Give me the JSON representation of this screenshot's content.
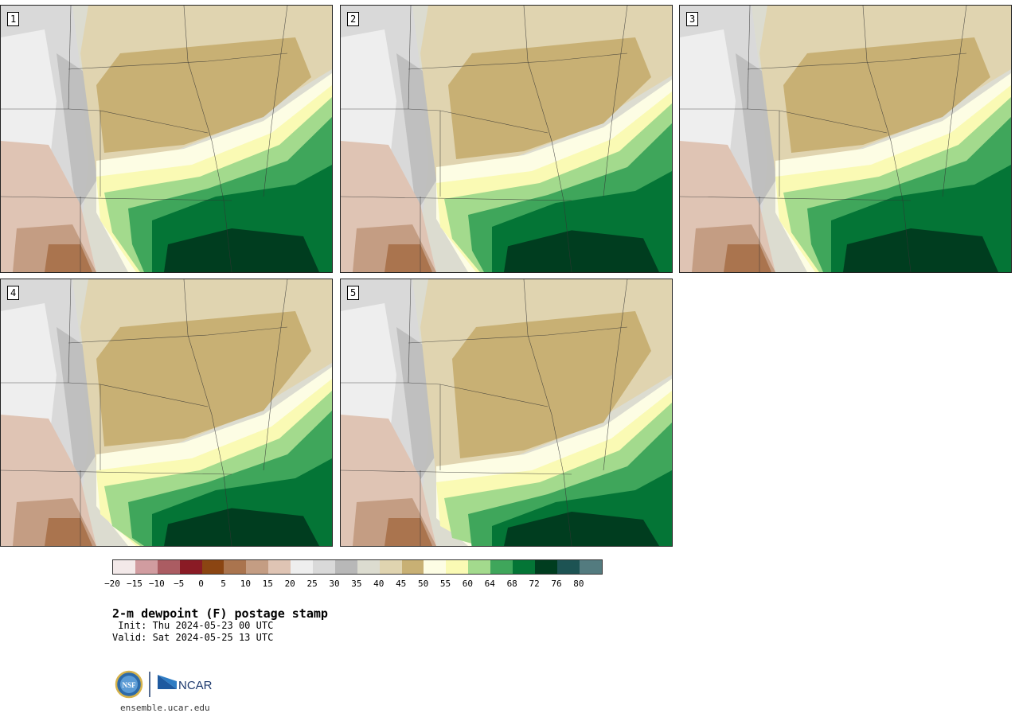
{
  "panels": [
    {
      "label": "1",
      "variant": 0
    },
    {
      "label": "2",
      "variant": 1
    },
    {
      "label": "3",
      "variant": 2
    },
    {
      "label": "4",
      "variant": 3
    },
    {
      "label": "5",
      "variant": 4
    }
  ],
  "colorbar": {
    "colors": [
      "#f3e9e9",
      "#d19ca0",
      "#ab5c62",
      "#8a1b25",
      "#8b4512",
      "#aa744e",
      "#c49d83",
      "#dfc4b4",
      "#eeeeee",
      "#d9d9d9",
      "#b8b8b8",
      "#dcdcd0",
      "#e0d4b0",
      "#c8b074",
      "#fdfde4",
      "#fafab4",
      "#a3da8d",
      "#3fa65b",
      "#047536",
      "#003d1f",
      "#1d5353",
      "#537b7f"
    ],
    "ticks": [
      "−20",
      "−15",
      "−10",
      "−5",
      "0",
      "5",
      "10",
      "15",
      "20",
      "25",
      "30",
      "35",
      "40",
      "45",
      "50",
      "55",
      "60",
      "64",
      "68",
      "72",
      "76",
      "80"
    ]
  },
  "title": "2-m dewpoint (F) postage stamp",
  "init": " Init: Thu 2024-05-23 00 UTC",
  "valid": "Valid: Sat 2024-05-25 13 UTC",
  "logos": {
    "nsf": "NSF",
    "ncar": "NCAR"
  },
  "site": "ensemble.ucar.edu"
}
